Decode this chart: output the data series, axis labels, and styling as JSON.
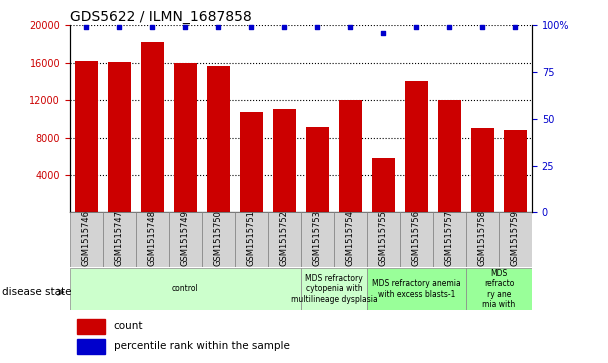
{
  "title": "GDS5622 / ILMN_1687858",
  "samples": [
    "GSM1515746",
    "GSM1515747",
    "GSM1515748",
    "GSM1515749",
    "GSM1515750",
    "GSM1515751",
    "GSM1515752",
    "GSM1515753",
    "GSM1515754",
    "GSM1515755",
    "GSM1515756",
    "GSM1515757",
    "GSM1515758",
    "GSM1515759"
  ],
  "counts": [
    16200,
    16100,
    18200,
    16000,
    15700,
    10700,
    11100,
    9100,
    12000,
    5800,
    14000,
    12000,
    9000,
    8800
  ],
  "percentile_ranks": [
    99,
    99,
    99,
    99,
    99,
    99,
    99,
    99,
    99,
    96,
    99,
    99,
    99,
    99
  ],
  "bar_color": "#cc0000",
  "dot_color": "#0000cc",
  "ylim_left": [
    0,
    20000
  ],
  "ylim_right": [
    0,
    100
  ],
  "yticks_left": [
    4000,
    8000,
    12000,
    16000,
    20000
  ],
  "yticks_right": [
    0,
    25,
    50,
    75,
    100
  ],
  "disease_groups": [
    {
      "label": "control",
      "start": 0,
      "end": 7,
      "color": "#ccffcc"
    },
    {
      "label": "MDS refractory\ncytopenia with\nmultilineage dysplasia",
      "start": 7,
      "end": 9,
      "color": "#ccffcc"
    },
    {
      "label": "MDS refractory anemia\nwith excess blasts-1",
      "start": 9,
      "end": 12,
      "color": "#99ff99"
    },
    {
      "label": "MDS\nrefracto\nry ane\nmia with",
      "start": 12,
      "end": 14,
      "color": "#99ff99"
    }
  ],
  "legend_items": [
    {
      "label": "count",
      "color": "#cc0000"
    },
    {
      "label": "percentile rank within the sample",
      "color": "#0000cc"
    }
  ],
  "disease_state_label": "disease state",
  "tick_label_color_left": "#cc0000",
  "tick_label_color_right": "#0000cc",
  "background_color": "#ffffff",
  "xticklabel_bg": "#d3d3d3"
}
